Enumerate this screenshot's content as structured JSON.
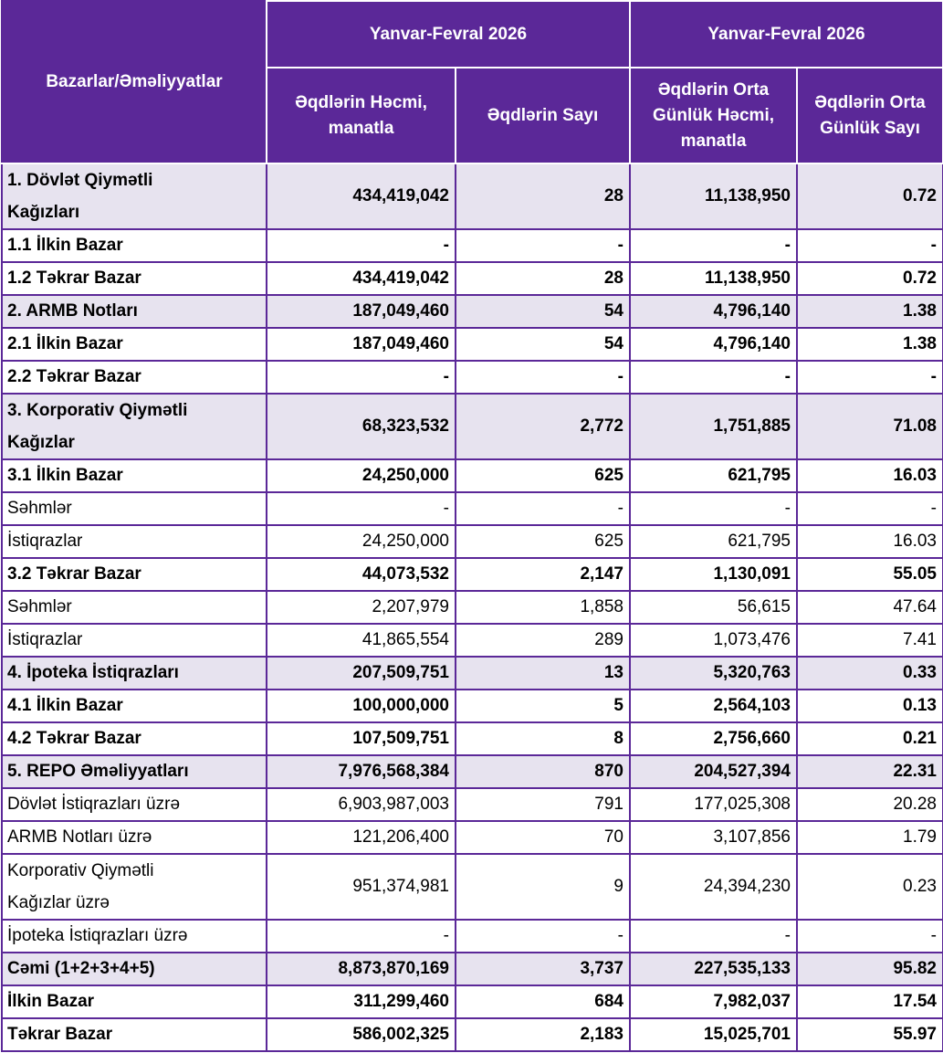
{
  "header": {
    "corner": "Bazarlar/Əməliyyatlar",
    "groups": [
      "Yanvar-Fevral 2026",
      "Yanvar-Fevral  2026"
    ],
    "columns": [
      "Əqdlərin Həcmi, manatla",
      "Əqdlərin Sayı",
      "Əqdlərin Orta Günlük Həcmi, manatla",
      "Əqdlərin Orta Günlük Sayı"
    ]
  },
  "table": {
    "rows": [
      [
        "1. Dövlət Qiymətli Kağızları",
        "434,419,042",
        "28",
        "11,138,950",
        "0.72"
      ],
      [
        "1.1 İlkin Bazar",
        "-",
        "-",
        "-",
        "-"
      ],
      [
        "1.2 Təkrar Bazar",
        "434,419,042",
        "28",
        "11,138,950",
        "0.72"
      ],
      [
        "2. ARMB Notları",
        "187,049,460",
        "54",
        "4,796,140",
        "1.38"
      ],
      [
        "2.1 İlkin Bazar",
        "187,049,460",
        "54",
        "4,796,140",
        "1.38"
      ],
      [
        "2.2 Təkrar Bazar",
        "-",
        "-",
        "-",
        "-"
      ],
      [
        "3. Korporativ Qiymətli Kağızlar",
        "68,323,532",
        "2,772",
        "1,751,885",
        "71.08"
      ],
      [
        "3.1 İlkin Bazar",
        "24,250,000",
        "625",
        "621,795",
        "16.03"
      ],
      [
        "Səhmlər",
        "-",
        "-",
        "-",
        "-"
      ],
      [
        "İstiqrazlar",
        "24,250,000",
        "625",
        "621,795",
        "16.03"
      ],
      [
        "3.2 Təkrar Bazar",
        "44,073,532",
        "2,147",
        "1,130,091",
        "55.05"
      ],
      [
        "Səhmlər",
        "2,207,979",
        "1,858",
        "56,615",
        "47.64"
      ],
      [
        "İstiqrazlar",
        "41,865,554",
        "289",
        "1,073,476",
        "7.41"
      ],
      [
        "4. İpoteka İstiqrazları",
        "207,509,751",
        "13",
        "5,320,763",
        "0.33"
      ],
      [
        "4.1 İlkin Bazar",
        "100,000,000",
        "5",
        "2,564,103",
        "0.13"
      ],
      [
        "4.2 Təkrar Bazar",
        "107,509,751",
        "8",
        "2,756,660",
        "0.21"
      ],
      [
        "5. REPO Əməliyyatları",
        "7,976,568,384",
        "870",
        "204,527,394",
        "22.31"
      ],
      [
        "Dövlət İstiqrazları üzrə",
        "6,903,987,003",
        "791",
        "177,025,308",
        "20.28"
      ],
      [
        "ARMB Notları üzrə",
        "121,206,400",
        "70",
        "3,107,856",
        "1.79"
      ],
      [
        "Korporativ Qiymətli Kağızlar üzrə",
        "951,374,981",
        "9",
        "24,394,230",
        "0.23"
      ],
      [
        "İpoteka İstiqrazları üzrə",
        "-",
        "-",
        "-",
        "-"
      ],
      [
        "Cəmi (1+2+3+4+5)",
        "8,873,870,169",
        "3,737",
        "227,535,133",
        "95.82"
      ],
      [
        "İlkin Bazar",
        "311,299,460",
        "684",
        "7,982,037",
        "17.54"
      ],
      [
        "Təkrar Bazar",
        "586,002,325",
        "2,183",
        "15,025,701",
        "55.97"
      ]
    ]
  }
}
